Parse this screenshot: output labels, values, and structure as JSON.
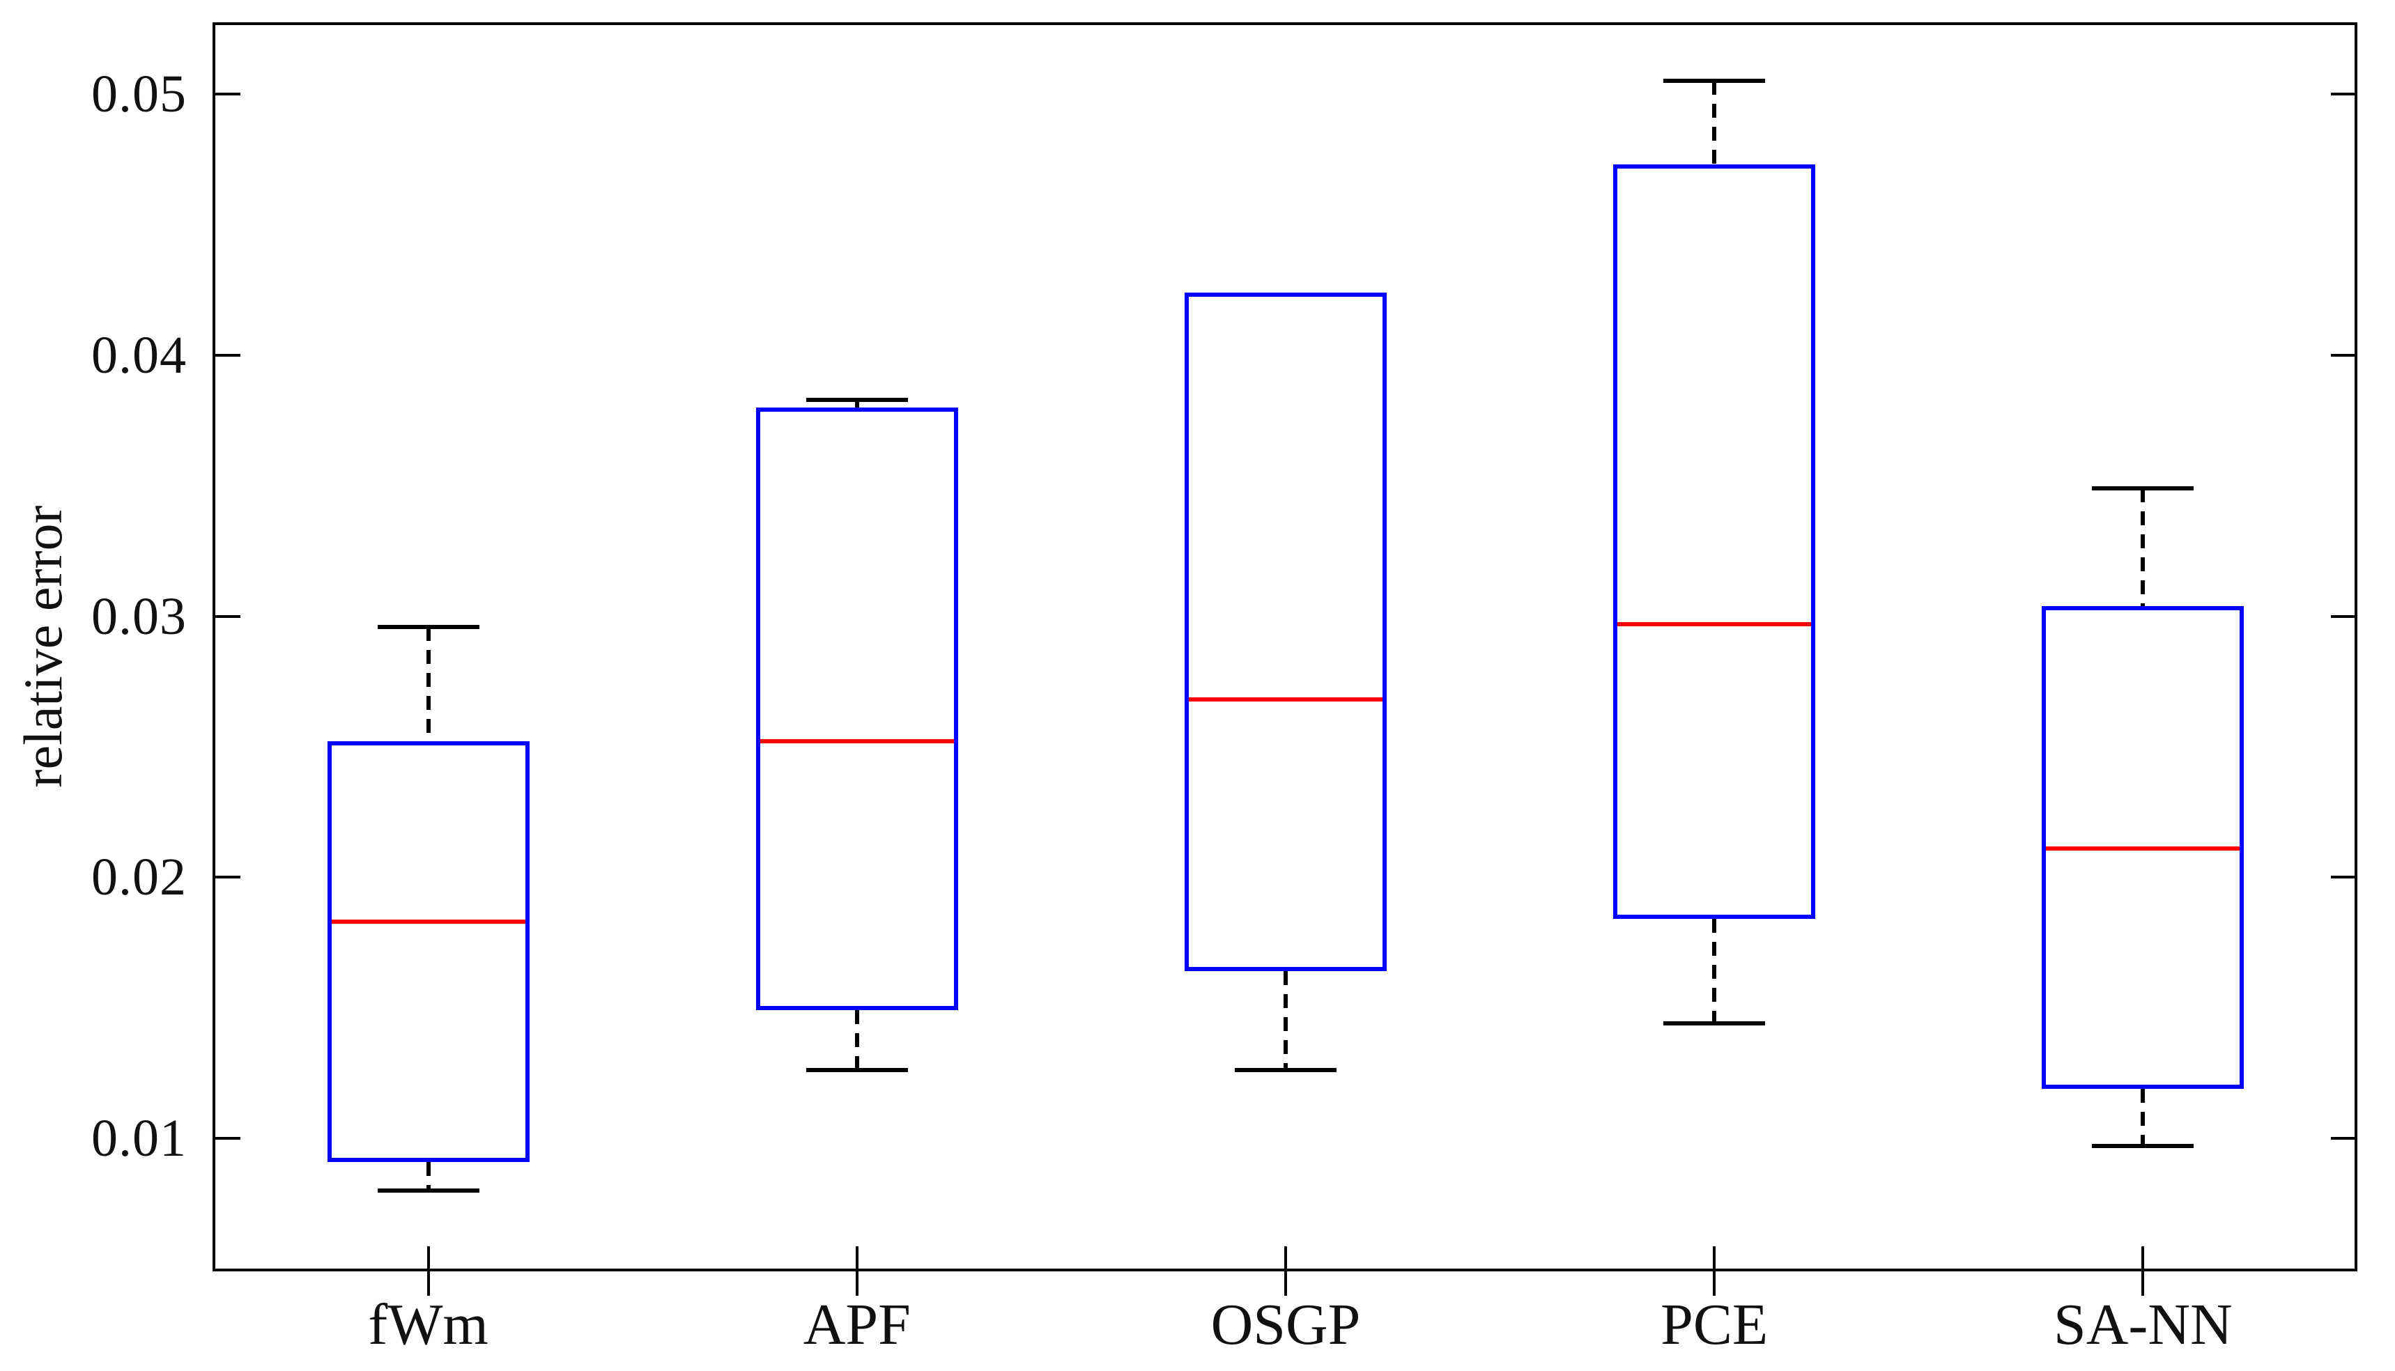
{
  "figure": {
    "background_color": "#ffffff",
    "axis_color": "#000000",
    "text_color": "#111111"
  },
  "chart_data": {
    "type": "box",
    "title": "",
    "xlabel": "",
    "ylabel": "relative error",
    "categories": [
      "fWm",
      "APF",
      "OSGP",
      "PCE",
      "SA-NN"
    ],
    "series": [
      {
        "name": "fWm",
        "whisker_low": 0.008,
        "q1": 0.0091,
        "median": 0.0183,
        "q3": 0.0252,
        "whisker_high": 0.0296
      },
      {
        "name": "APF",
        "whisker_low": 0.0126,
        "q1": 0.0149,
        "median": 0.0252,
        "q3": 0.038,
        "whisker_high": 0.0383
      },
      {
        "name": "OSGP",
        "whisker_low": 0.0126,
        "q1": 0.0164,
        "median": 0.0268,
        "q3": 0.0424,
        "whisker_high": 0.0424
      },
      {
        "name": "PCE",
        "whisker_low": 0.0144,
        "q1": 0.0184,
        "median": 0.0297,
        "q3": 0.0473,
        "whisker_high": 0.0505
      },
      {
        "name": "SA-NN",
        "whisker_low": 0.0097,
        "q1": 0.0119,
        "median": 0.0211,
        "q3": 0.0304,
        "whisker_high": 0.0349
      }
    ],
    "yticks": [
      {
        "value": 0.05,
        "label": "0.05"
      },
      {
        "value": 0.04,
        "label": "0.04"
      },
      {
        "value": 0.03,
        "label": "0.03"
      },
      {
        "value": 0.02,
        "label": "0.02"
      },
      {
        "value": 0.01,
        "label": "0.01"
      }
    ],
    "ylim": [
      0.0049,
      0.0527
    ],
    "grid": false,
    "legend": "none",
    "colors": {
      "box": "#0000ff",
      "median": "#ff0000",
      "whisker": "#000000",
      "cap": "#000000"
    }
  }
}
